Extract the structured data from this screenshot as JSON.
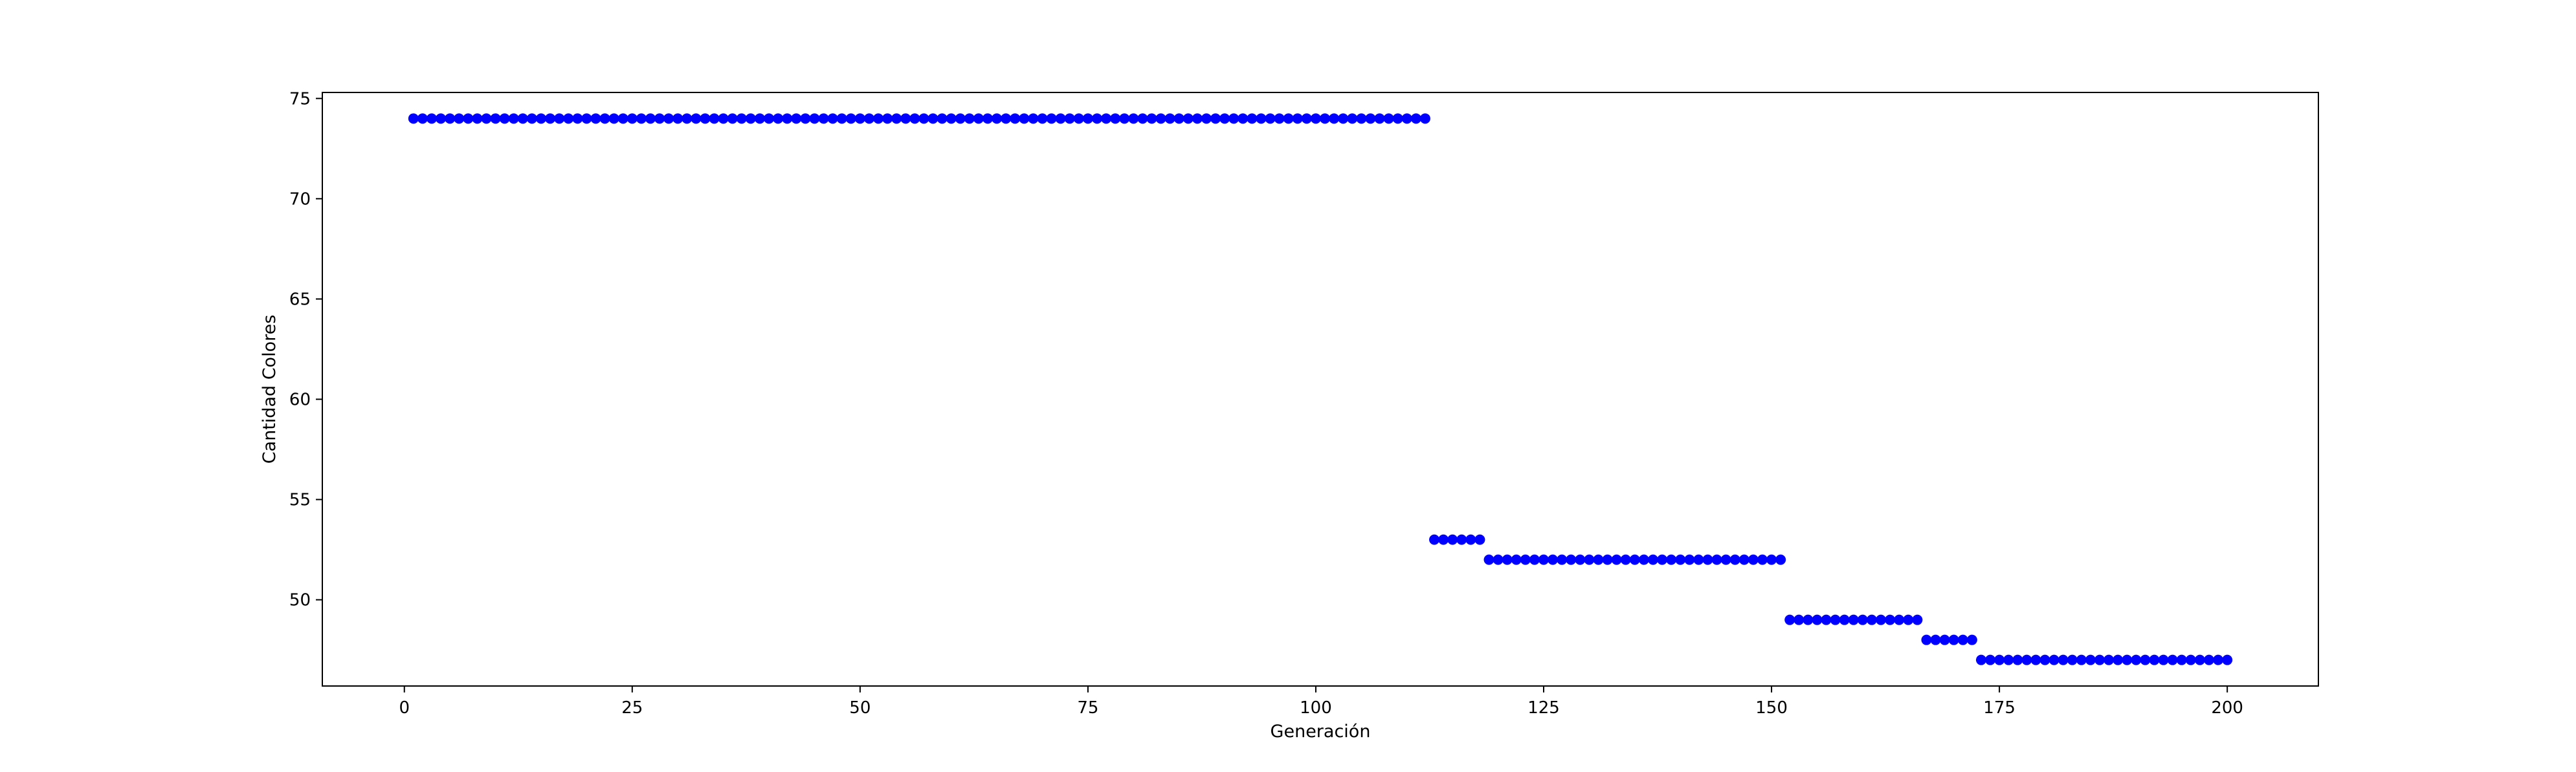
{
  "chart_data": {
    "type": "scatter",
    "title": "",
    "xlabel": "Generación",
    "ylabel": "Cantidad Colores",
    "xlim": [
      -9,
      210
    ],
    "ylim": [
      45.7,
      75.3
    ],
    "xticks": [
      0,
      25,
      50,
      75,
      100,
      125,
      150,
      175,
      200
    ],
    "yticks": [
      50,
      55,
      60,
      65,
      70,
      75
    ],
    "xtick_labels": [
      "0",
      "25",
      "50",
      "75",
      "100",
      "125",
      "150",
      "175",
      "200"
    ],
    "ytick_labels": [
      "50",
      "55",
      "60",
      "65",
      "70",
      "75"
    ],
    "grid": false,
    "legend": "none",
    "marker_color": "#0000ff",
    "segments": [
      {
        "x_start": 1,
        "x_end": 112,
        "y": 74
      },
      {
        "x_start": 113,
        "x_end": 118,
        "y": 53
      },
      {
        "x_start": 119,
        "x_end": 151,
        "y": 52
      },
      {
        "x_start": 152,
        "x_end": 166,
        "y": 49
      },
      {
        "x_start": 167,
        "x_end": 172,
        "y": 48
      },
      {
        "x_start": 173,
        "x_end": 200,
        "y": 47
      }
    ]
  }
}
